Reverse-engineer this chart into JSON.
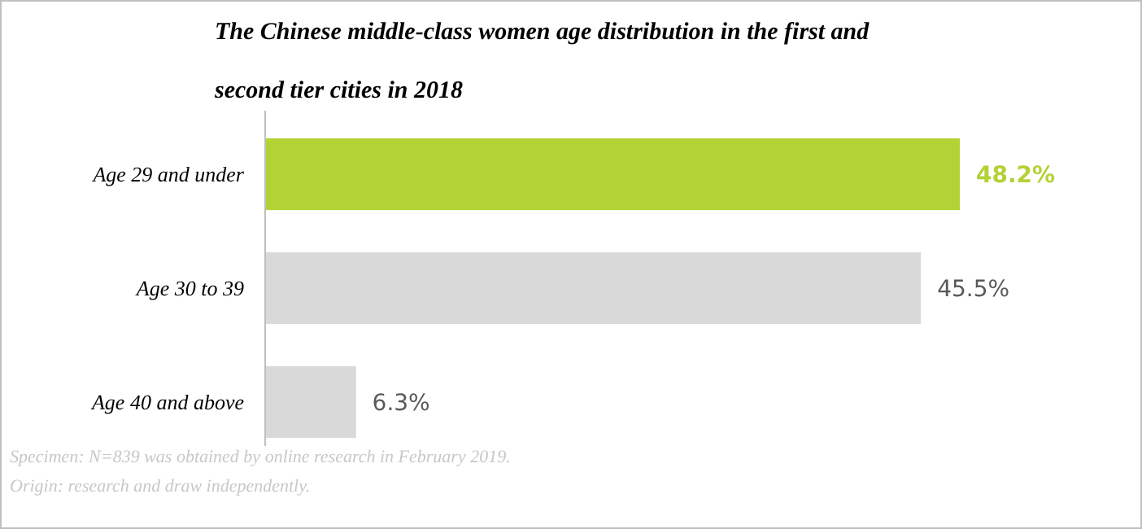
{
  "chart_data": {
    "type": "bar",
    "orientation": "horizontal",
    "title": "The Chinese middle-class women age distribution in the first and second tier cities in 2018",
    "categories": [
      "Age 29 and under",
      "Age 30 to 39",
      "Age 40 and above"
    ],
    "values": [
      48.2,
      45.5,
      6.3
    ],
    "colors": [
      "#b2d235",
      "#d9d9d9",
      "#d9d9d9"
    ],
    "value_labels": [
      "48.2%",
      "45.5%",
      "6.3%"
    ],
    "annotations": [
      "Specimen: N=839 was obtained by online research in February 2019.",
      "Origin: research and draw independently."
    ]
  }
}
